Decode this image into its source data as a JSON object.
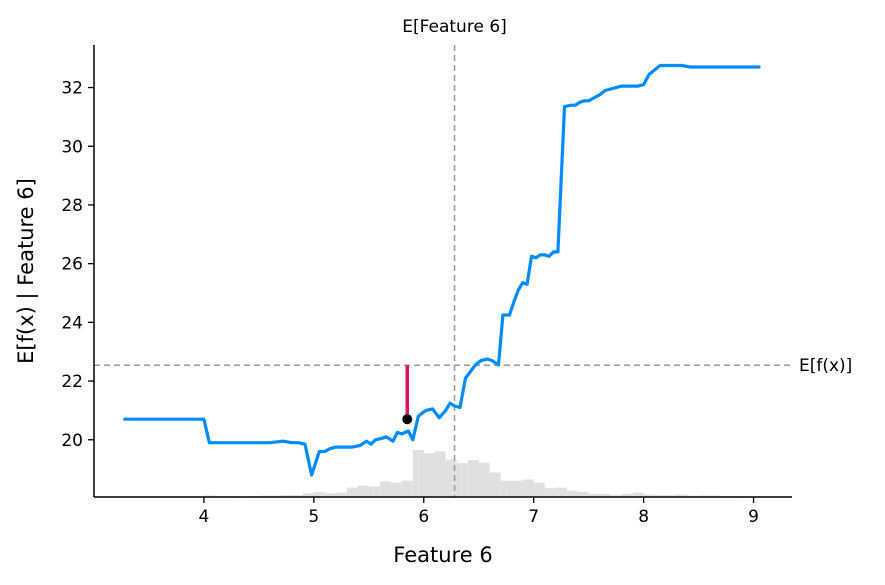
{
  "chart_data": {
    "type": "line",
    "title": "",
    "xlabel": "Feature 6",
    "ylabel": "E[f(x) | Feature 6]",
    "xlim": [
      3.0,
      9.35
    ],
    "ylim": [
      18.05,
      33.45
    ],
    "x_ticks": [
      "4",
      "5",
      "6",
      "7",
      "8",
      "9"
    ],
    "y_ticks": [
      "20",
      "22",
      "24",
      "26",
      "28",
      "30",
      "32"
    ],
    "grid": false,
    "legend": "none",
    "colors": {
      "line": "#008bfb",
      "histogram": "#e0e0e0",
      "reference": "#999999",
      "highlight": "#e0105f",
      "point": "#000000"
    },
    "series": [
      {
        "x": [
          3.28,
          3.5,
          3.7,
          3.9,
          4.0,
          4.05,
          4.2,
          4.4,
          4.6,
          4.72,
          4.8,
          4.86,
          4.92,
          4.98,
          5.05,
          5.1,
          5.15,
          5.2,
          5.25,
          5.35,
          5.42,
          5.48,
          5.52,
          5.56,
          5.62,
          5.66,
          5.72,
          5.76,
          5.8,
          5.86,
          5.9,
          5.95,
          5.98,
          6.02,
          6.08,
          6.14,
          6.2,
          6.24,
          6.28,
          6.33,
          6.38,
          6.42,
          6.47,
          6.52,
          6.58,
          6.62,
          6.68,
          6.72,
          6.78,
          6.82,
          6.86,
          6.9,
          6.94,
          6.98,
          7.02,
          7.06,
          7.1,
          7.14,
          7.18,
          7.22,
          7.28,
          7.34,
          7.38,
          7.42,
          7.46,
          7.5,
          7.6,
          7.65,
          7.75,
          7.8,
          7.85,
          7.9,
          7.95,
          8.0,
          8.05,
          8.15,
          8.22,
          8.3,
          8.35,
          8.42,
          8.5,
          8.55,
          8.6,
          8.7,
          8.8,
          8.9,
          9.05
        ],
        "y": [
          20.7,
          20.7,
          20.7,
          20.7,
          20.7,
          19.9,
          19.9,
          19.9,
          19.9,
          19.95,
          19.9,
          19.9,
          19.85,
          18.8,
          19.6,
          19.6,
          19.7,
          19.75,
          19.75,
          19.75,
          19.8,
          19.95,
          19.85,
          20.0,
          20.05,
          20.1,
          19.95,
          20.25,
          20.2,
          20.3,
          20.0,
          20.8,
          20.9,
          21.0,
          21.05,
          20.75,
          21.0,
          21.25,
          21.15,
          21.1,
          22.1,
          22.3,
          22.55,
          22.7,
          22.75,
          22.7,
          22.55,
          24.25,
          24.25,
          24.7,
          25.1,
          25.35,
          25.3,
          26.25,
          26.2,
          26.3,
          26.3,
          26.25,
          26.4,
          26.4,
          31.35,
          31.4,
          31.4,
          31.5,
          31.55,
          31.55,
          31.75,
          31.9,
          32.0,
          32.05,
          32.05,
          32.05,
          32.05,
          32.1,
          32.45,
          32.75,
          32.75,
          32.75,
          32.75,
          32.7,
          32.7,
          32.7,
          32.7,
          32.7,
          32.7,
          32.7,
          32.7
        ]
      }
    ],
    "histogram": {
      "bin_width": 0.1,
      "bins_x": [
        4.0,
        4.1,
        4.2,
        4.3,
        4.4,
        4.5,
        4.6,
        4.7,
        4.8,
        4.9,
        5.0,
        5.1,
        5.2,
        5.3,
        5.4,
        5.5,
        5.6,
        5.7,
        5.8,
        5.9,
        6.0,
        6.1,
        6.2,
        6.3,
        6.4,
        6.5,
        6.6,
        6.7,
        6.8,
        6.9,
        7.0,
        7.1,
        7.2,
        7.3,
        7.4,
        7.5,
        7.6,
        7.7,
        7.8,
        7.9,
        8.0,
        8.1,
        8.2,
        8.3,
        8.4,
        8.5,
        8.6,
        8.7,
        8.8
      ],
      "counts": [
        0.5,
        0.3,
        0.3,
        0.2,
        0.3,
        0.4,
        0.4,
        0.6,
        0.6,
        1.2,
        1.6,
        1.2,
        1.4,
        3.0,
        3.6,
        3.4,
        5.0,
        4.6,
        5.2,
        15.0,
        14.0,
        14.6,
        12.0,
        10.8,
        11.8,
        11.0,
        7.8,
        5.2,
        5.2,
        5.6,
        4.6,
        2.8,
        3.0,
        2.0,
        1.6,
        1.0,
        1.0,
        0.6,
        1.0,
        1.4,
        0.8,
        0.6,
        0.6,
        0.8,
        0.4,
        0.5,
        0.5,
        0.3,
        0.3
      ],
      "y_range": [
        18.05,
        19.65
      ],
      "max_count": 15.0
    },
    "expected_value": {
      "y": 22.54,
      "label": "E[f(x)]"
    },
    "feature_mean": {
      "x": 6.28,
      "label": "E[Feature 6]"
    },
    "highlight": {
      "x": 5.85,
      "y_point": 20.7,
      "y_top": 22.54
    }
  }
}
